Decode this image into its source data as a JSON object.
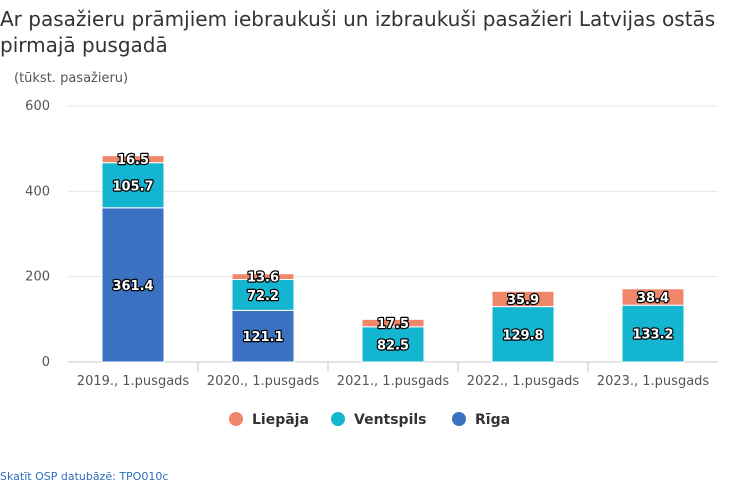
{
  "chart_data": {
    "type": "bar",
    "stacked": true,
    "title": " Ar pasažieru prāmjiem iebraukuši un izbraukuši pasažieri Latvijas ostās pirmajā pusgadā",
    "unit_label": "(tūkst. pasažieru)",
    "categories": [
      "2019., 1.pusgads",
      "2020., 1.pusgads",
      "2021., 1.pusgads",
      "2022., 1.pusgads",
      "2023., 1.pusgads"
    ],
    "series": [
      {
        "name": "Rīga",
        "color": "#3a71c1",
        "values": [
          361.4,
          121.1,
          null,
          null,
          null
        ]
      },
      {
        "name": "Ventspils",
        "color": "#14b5d0",
        "values": [
          105.7,
          72.2,
          82.5,
          129.8,
          133.2
        ]
      },
      {
        "name": "Liepāja",
        "color": "#f0866a",
        "values": [
          16.5,
          13.6,
          17.5,
          35.9,
          38.4
        ]
      }
    ],
    "legend_order": [
      "Liepāja",
      "Ventspils",
      "Rīga"
    ],
    "legend_position": "bottom",
    "y_ticks": [
      0,
      200,
      400,
      600
    ],
    "ylim": [
      0,
      600
    ],
    "grid": true
  },
  "footer": {
    "source_link": "Skatīt OSP datubāzē: TPO010c"
  }
}
